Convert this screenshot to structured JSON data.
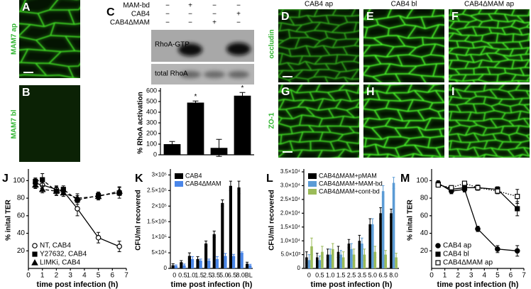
{
  "panel_a": {
    "letter": "A",
    "label": "MAM7 ap"
  },
  "panel_b": {
    "letter": "B",
    "label": "MAM7 bl"
  },
  "panel_c": {
    "letter": "C",
    "conditions": [
      {
        "name": "MAM-bd",
        "signs": [
          "−",
          "+",
          "−",
          "−"
        ]
      },
      {
        "name": "CAB4",
        "signs": [
          "−",
          "−",
          "−",
          "+"
        ]
      },
      {
        "name": "CAB4ΔMAM",
        "signs": [
          "−",
          "−",
          "+",
          "−"
        ]
      }
    ],
    "blots": [
      "RhoA-GTP",
      "total RhoA"
    ]
  },
  "panels_d_i": {
    "columns": [
      "CAB4 ap",
      "CAB4 bl",
      "CAB4ΔMAM ap"
    ],
    "rows": [
      "occludin",
      "ZO-1"
    ],
    "letters": [
      [
        "D",
        "E",
        "F"
      ],
      [
        "G",
        "H",
        "I"
      ]
    ]
  },
  "chart_data": [
    {
      "type": "bar",
      "ylabel": "% RhoA activation",
      "values": [
        100,
        490,
        65,
        555
      ],
      "errors": [
        25,
        15,
        80,
        30
      ],
      "significance": [
        null,
        "*",
        null,
        "*"
      ],
      "color": "#000000",
      "ylim": [
        0,
        600
      ],
      "yticks": [
        0,
        100,
        200,
        300,
        400,
        500,
        600
      ]
    },
    {
      "type": "line",
      "letter": "J",
      "xlabel": "time post infection (h)",
      "ylabel": "% inital TER",
      "xlim": [
        0,
        7
      ],
      "xticks": [
        0,
        1,
        2,
        3,
        4,
        5,
        6,
        7
      ],
      "ylim": [
        0,
        110
      ],
      "yticks": [
        20,
        40,
        60,
        80,
        100
      ],
      "legend": "lower left",
      "series": [
        {
          "name": "NT, CAB4",
          "color": "#000000",
          "marker": "circle-open",
          "dash": "solid",
          "x": [
            0.5,
            1,
            2,
            2.5,
            3.5,
            5,
            6.5
          ],
          "values": [
            97,
            95,
            90,
            88,
            68,
            35,
            25
          ],
          "errors": [
            5,
            5,
            4,
            4,
            8,
            6,
            6
          ]
        },
        {
          "name": "Y27632, CAB4",
          "color": "#000000",
          "marker": "square",
          "dash": "dashed",
          "x": [
            0.5,
            1,
            2,
            2.5,
            3.5,
            5,
            6.5
          ],
          "values": [
            99,
            101,
            88,
            90,
            78,
            83,
            86
          ],
          "errors": [
            4,
            7,
            5,
            4,
            5,
            4,
            6
          ]
        },
        {
          "name": "LIMKi, CAB4",
          "color": "#000000",
          "marker": "triangle",
          "dash": "dashed",
          "x": [
            0.5,
            1,
            2,
            2.5,
            3.5,
            5,
            6.5
          ],
          "values": [
            95,
            90,
            88,
            86,
            80,
            82,
            88
          ],
          "errors": [
            4,
            4,
            4,
            4,
            5,
            4,
            5
          ]
        }
      ]
    },
    {
      "type": "bar",
      "letter": "K",
      "xlabel": "time post infection (h)",
      "ylabel": "CFU/ml recovered",
      "categories": [
        "0",
        "0.5",
        "1.0",
        "1.5",
        "2.5",
        "3.5",
        "5.0",
        "6.5",
        "8.0",
        "BL"
      ],
      "ylim": [
        0,
        310000
      ],
      "yticks": [
        0,
        {
          "value": 50000,
          "label": "5×10⁴"
        },
        {
          "value": 100000,
          "label": "1×10⁵"
        },
        {
          "value": 150000,
          "label": "1.5×10⁵"
        },
        {
          "value": 200000,
          "label": "2×10⁵"
        },
        {
          "value": 250000,
          "label": "2.5×10⁵"
        },
        {
          "value": 300000,
          "label": "3×10⁵"
        }
      ],
      "legend": "upper left",
      "series": [
        {
          "name": "CAB4",
          "color": "#000000",
          "values": [
            10000,
            20000,
            40000,
            30000,
            80000,
            110000,
            210000,
            265000,
            260000,
            15000
          ],
          "errors": [
            5000,
            5000,
            10000,
            8000,
            8000,
            10000,
            10000,
            15000,
            20000,
            5000
          ]
        },
        {
          "name": "CAB4ΔMAM",
          "color": "#4a86e8",
          "values": [
            8000,
            10000,
            30000,
            25000,
            25000,
            30000,
            40000,
            40000,
            50000,
            10000
          ],
          "errors": [
            3000,
            4000,
            8000,
            5000,
            5000,
            8000,
            8000,
            5000,
            3000,
            3000
          ]
        }
      ]
    },
    {
      "type": "bar",
      "letter": "L",
      "xlabel": "time post infection (h)",
      "ylabel": "CFU/ml recovered",
      "categories": [
        "0",
        "0.5",
        "1.0",
        "1.5",
        "2.5",
        "3.5",
        "5.0",
        "6.5",
        "8.0"
      ],
      "ylim": [
        0,
        35000
      ],
      "yticks": [
        0,
        {
          "value": 5000,
          "label": "5.0×10³"
        },
        {
          "value": 10000,
          "label": "1.0×10⁴"
        },
        {
          "value": 15000,
          "label": "1.5×10⁴"
        },
        {
          "value": 20000,
          "label": "2.0×10⁴"
        },
        {
          "value": 25000,
          "label": "2.5×10⁴"
        },
        {
          "value": 30000,
          "label": "3.0×10⁴"
        },
        {
          "value": 35000,
          "label": "3.5×10⁴"
        }
      ],
      "legend": "upper left",
      "series": [
        {
          "name": "CAB4ΔMAM+pMAM",
          "color": "#000000",
          "values": [
            4000,
            4000,
            5000,
            6000,
            9000,
            10000,
            16000,
            20000,
            20000
          ],
          "errors": [
            2000,
            1500,
            2000,
            2000,
            1500,
            2000,
            2000,
            2000,
            1500
          ]
        },
        {
          "name": "CAB4ΔMAM+MAM-bd",
          "color": "#5b9bd5",
          "values": [
            3000,
            3000,
            5000,
            5000,
            7000,
            9000,
            16000,
            28000,
            31000
          ],
          "errors": [
            2000,
            1500,
            2000,
            1500,
            2000,
            2000,
            2000,
            2000,
            2000
          ]
        },
        {
          "name": "CAB4ΔMAM+cont-bd",
          "color": "#9bbb59",
          "values": [
            8000,
            6000,
            7000,
            4000,
            5000,
            5000,
            6000,
            5000,
            4000
          ],
          "errors": [
            3000,
            2000,
            2000,
            2000,
            2000,
            2000,
            2000,
            1500,
            1500
          ]
        }
      ]
    },
    {
      "type": "line",
      "letter": "M",
      "xlabel": "time post infection (h)",
      "ylabel": "% inital TER",
      "xlim": [
        0,
        7
      ],
      "xticks": [
        0,
        1,
        2,
        3,
        4,
        5,
        6,
        7
      ],
      "ylim": [
        0,
        110
      ],
      "yticks": [
        20,
        40,
        60,
        80,
        100
      ],
      "legend": "lower left",
      "series": [
        {
          "name": "CAB4 ap",
          "color": "#000000",
          "marker": "circle",
          "dash": "solid",
          "x": [
            0.5,
            1.5,
            2.5,
            3.5,
            5,
            6.5
          ],
          "values": [
            97,
            88,
            90,
            45,
            22,
            20
          ],
          "errors": [
            3,
            3,
            3,
            3,
            4,
            6
          ]
        },
        {
          "name": "CAB4 bl",
          "color": "#000000",
          "marker": "square",
          "dash": "solid",
          "x": [
            0.5,
            1.5,
            2.5,
            3.5,
            5,
            6.5
          ],
          "values": [
            96,
            90,
            92,
            92,
            90,
            68
          ],
          "errors": [
            2,
            2,
            2,
            3,
            3,
            8
          ]
        },
        {
          "name": "CAB4ΔMAM ap",
          "color": "#000000",
          "marker": "square-open",
          "dash": "dotted",
          "x": [
            0.5,
            1.5,
            2.5,
            3.5,
            5,
            6.5
          ],
          "values": [
            95,
            92,
            97,
            92,
            88,
            82
          ],
          "errors": [
            2,
            2,
            2,
            2,
            3,
            8
          ]
        }
      ]
    }
  ]
}
